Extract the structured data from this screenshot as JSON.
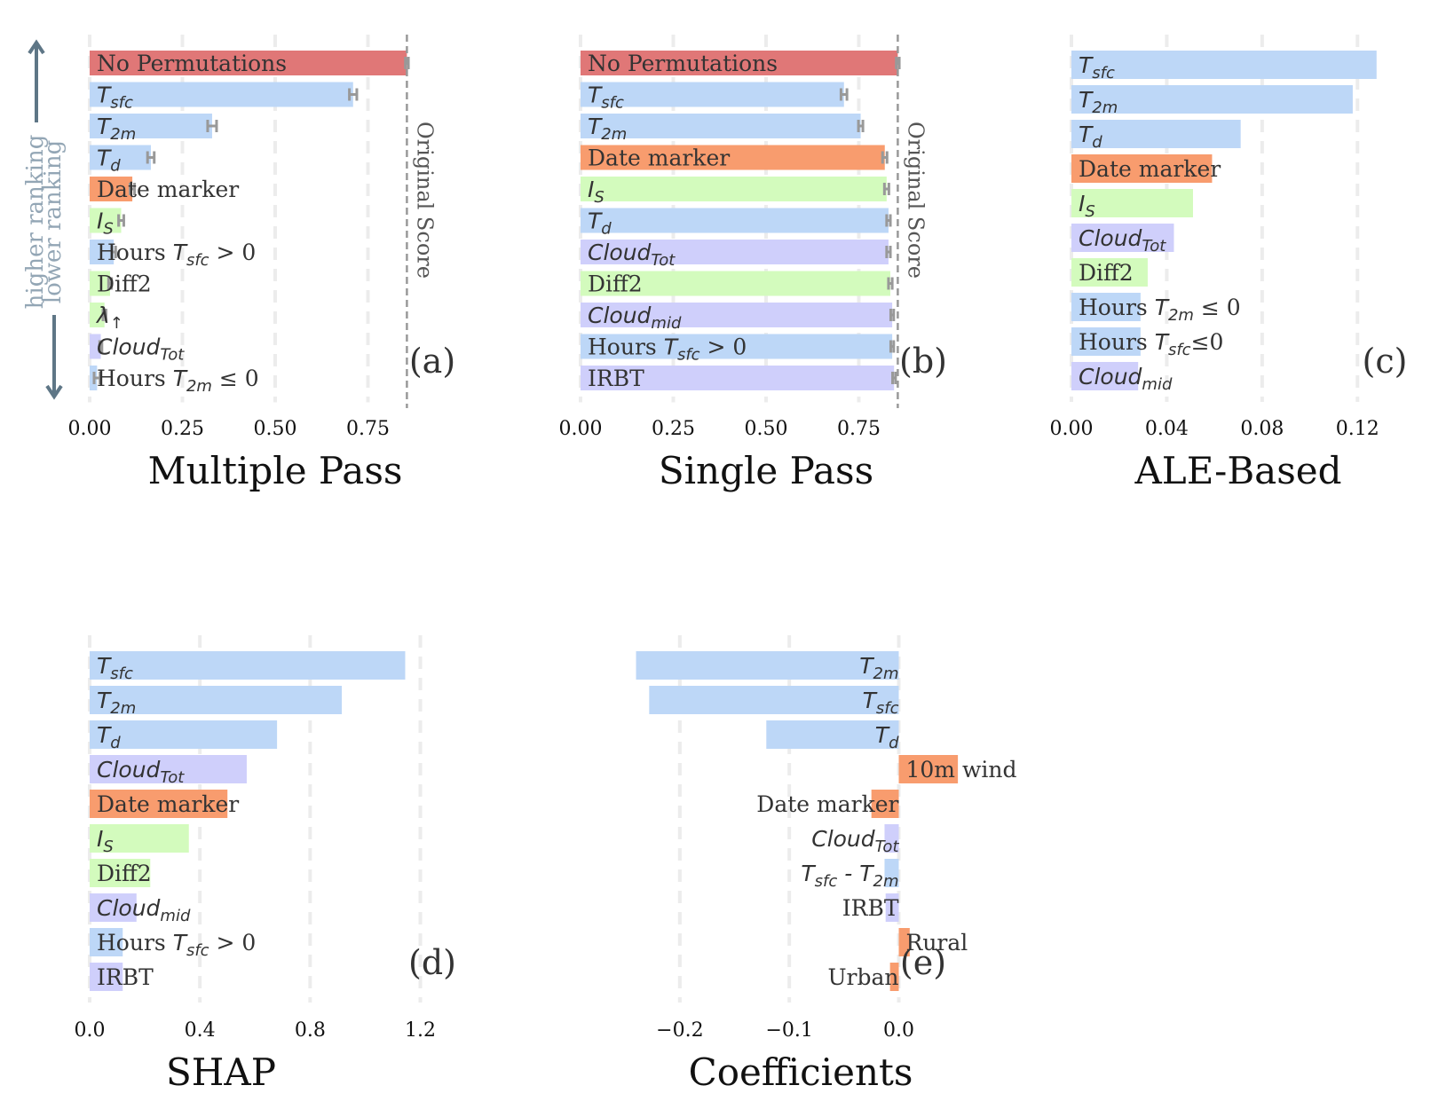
{
  "figure": {
    "ranking_annotation": {
      "higher": "higher ranking",
      "lower": "lower ranking"
    },
    "original_score_label": "Original Score"
  },
  "colors": {
    "baseline": "#e07777",
    "temperature": "#bdd7f7",
    "time": "#f89c6e",
    "radiation": "#d3fbbd",
    "cloud": "#cfcffb",
    "arrow": "#5e7686",
    "error_bar": "#999999"
  },
  "chart_data": [
    {
      "id": "a",
      "type": "bar",
      "orientation": "horizontal",
      "title": "Multiple Pass",
      "panel_label": "(a)",
      "xlim": [
        0,
        1.0
      ],
      "xticks": [
        "0.00",
        "0.25",
        "0.50",
        "0.75"
      ],
      "xtick_values": [
        0,
        0.25,
        0.5,
        0.75
      ],
      "original_score": 0.855,
      "categories": [
        {
          "text": "No Permutations",
          "value": 0.855,
          "err": 0.004,
          "group": "baseline"
        },
        {
          "base": "T",
          "sub": "sfc",
          "value": 0.71,
          "err": 0.01,
          "group": "temperature"
        },
        {
          "base": "T",
          "sub": "2m",
          "value": 0.33,
          "err": 0.012,
          "group": "temperature"
        },
        {
          "base": "T",
          "sub": "d",
          "value": 0.165,
          "err": 0.009,
          "group": "temperature"
        },
        {
          "text": "Date marker",
          "value": 0.115,
          "err": 0.006,
          "group": "time"
        },
        {
          "base": "I",
          "sub": "S",
          "value": 0.085,
          "err": 0.007,
          "group": "radiation"
        },
        {
          "text": "Hours ",
          "base": "T",
          "sub": "sfc",
          "suffix": " > 0",
          "value": 0.065,
          "err": 0.005,
          "group": "temperature"
        },
        {
          "text": "Diff2",
          "value": 0.055,
          "err": 0.004,
          "group": "radiation"
        },
        {
          "base": "λ",
          "sub": "↑",
          "value": 0.04,
          "err": 0.004,
          "group": "radiation"
        },
        {
          "base": "Cloud",
          "sub": "Tot",
          "value": 0.03,
          "err": 0.003,
          "group": "cloud"
        },
        {
          "text": "Hours ",
          "base": "T",
          "sub": "2m",
          "suffix": " ≤ 0",
          "value": 0.02,
          "err": 0.008,
          "group": "temperature"
        }
      ]
    },
    {
      "id": "b",
      "type": "bar",
      "orientation": "horizontal",
      "title": "Single Pass",
      "panel_label": "(b)",
      "xlim": [
        0,
        1.0
      ],
      "xticks": [
        "0.00",
        "0.25",
        "0.50",
        "0.75"
      ],
      "xtick_values": [
        0,
        0.25,
        0.5,
        0.75
      ],
      "original_score": 0.855,
      "categories": [
        {
          "text": "No Permutations",
          "value": 0.855,
          "err": 0.004,
          "group": "baseline"
        },
        {
          "base": "T",
          "sub": "sfc",
          "value": 0.71,
          "err": 0.008,
          "group": "temperature"
        },
        {
          "base": "T",
          "sub": "2m",
          "value": 0.755,
          "err": 0.006,
          "group": "temperature"
        },
        {
          "text": "Date marker",
          "value": 0.82,
          "err": 0.006,
          "group": "time"
        },
        {
          "base": "I",
          "sub": "S",
          "value": 0.825,
          "err": 0.006,
          "group": "radiation"
        },
        {
          "base": "T",
          "sub": "d",
          "value": 0.83,
          "err": 0.005,
          "group": "temperature"
        },
        {
          "base": "Cloud",
          "sub": "Tot",
          "value": 0.83,
          "err": 0.005,
          "group": "cloud"
        },
        {
          "text": "Diff2",
          "value": 0.835,
          "err": 0.005,
          "group": "radiation"
        },
        {
          "base": "Cloud",
          "sub": "mid",
          "value": 0.84,
          "err": 0.004,
          "group": "cloud"
        },
        {
          "text": "Hours ",
          "base": "T",
          "sub": "sfc",
          "suffix": " > 0",
          "value": 0.84,
          "err": 0.004,
          "group": "temperature"
        },
        {
          "text": "IRBT",
          "value": 0.845,
          "err": 0.004,
          "group": "cloud"
        }
      ]
    },
    {
      "id": "c",
      "type": "bar",
      "orientation": "horizontal",
      "title": "ALE-Based",
      "panel_label": "(c)",
      "xlim": [
        0,
        0.14
      ],
      "xticks": [
        "0.00",
        "0.04",
        "0.08",
        "0.12"
      ],
      "xtick_values": [
        0,
        0.04,
        0.08,
        0.12
      ],
      "categories": [
        {
          "base": "T",
          "sub": "sfc",
          "value": 0.128,
          "group": "temperature"
        },
        {
          "base": "T",
          "sub": "2m",
          "value": 0.118,
          "group": "temperature"
        },
        {
          "base": "T",
          "sub": "d",
          "value": 0.071,
          "group": "temperature"
        },
        {
          "text": "Date marker",
          "value": 0.059,
          "group": "time"
        },
        {
          "base": "I",
          "sub": "S",
          "value": 0.051,
          "group": "radiation"
        },
        {
          "base": "Cloud",
          "sub": "Tot",
          "value": 0.043,
          "group": "cloud"
        },
        {
          "text": "Diff2",
          "value": 0.032,
          "group": "radiation"
        },
        {
          "text": "Hours ",
          "base": "T",
          "sub": "2m",
          "suffix": " ≤ 0",
          "value": 0.029,
          "group": "temperature"
        },
        {
          "text": "Hours ",
          "base": "T",
          "sub": "sfc",
          "suffix": "≤0",
          "value": 0.029,
          "group": "temperature"
        },
        {
          "base": "Cloud",
          "sub": "mid",
          "value": 0.028,
          "group": "cloud"
        }
      ]
    },
    {
      "id": "d",
      "type": "bar",
      "orientation": "horizontal",
      "title": "SHAP",
      "panel_label": "(d)",
      "xlim": [
        0,
        1.34
      ],
      "xticks": [
        "0.0",
        "0.4",
        "0.8",
        "1.2"
      ],
      "xtick_values": [
        0,
        0.4,
        0.8,
        1.2
      ],
      "categories": [
        {
          "base": "T",
          "sub": "sfc",
          "value": 1.145,
          "group": "temperature"
        },
        {
          "base": "T",
          "sub": "2m",
          "value": 0.915,
          "group": "temperature"
        },
        {
          "base": "T",
          "sub": "d",
          "value": 0.68,
          "group": "temperature"
        },
        {
          "base": "Cloud",
          "sub": "Tot",
          "value": 0.57,
          "group": "cloud"
        },
        {
          "text": "Date marker",
          "value": 0.5,
          "group": "time"
        },
        {
          "base": "I",
          "sub": "S",
          "value": 0.36,
          "group": "radiation"
        },
        {
          "text": "Diff2",
          "value": 0.22,
          "group": "radiation"
        },
        {
          "base": "Cloud",
          "sub": "mid",
          "value": 0.17,
          "group": "cloud"
        },
        {
          "text": "Hours ",
          "base": "T",
          "sub": "sfc",
          "suffix": " > 0",
          "value": 0.12,
          "group": "temperature"
        },
        {
          "text": "IRBT",
          "value": 0.12,
          "group": "cloud"
        }
      ]
    },
    {
      "id": "e",
      "type": "bar",
      "orientation": "horizontal",
      "title": "Coefficients",
      "panel_label": "(e)",
      "xlim": [
        -0.268,
        0.105
      ],
      "xticks": [
        "−0.2",
        "−0.1",
        "0.0"
      ],
      "xtick_values": [
        -0.2,
        -0.1,
        0.0
      ],
      "categories": [
        {
          "base": "T",
          "sub": "2m",
          "value": -0.24,
          "group": "temperature"
        },
        {
          "base": "T",
          "sub": "sfc",
          "value": -0.228,
          "group": "temperature"
        },
        {
          "base": "T",
          "sub": "d",
          "value": -0.121,
          "group": "temperature"
        },
        {
          "text": "10m wind",
          "value": 0.054,
          "group": "time"
        },
        {
          "text": "Date marker",
          "value": -0.025,
          "group": "time"
        },
        {
          "base": "Cloud",
          "sub": "Tot",
          "value": -0.013,
          "group": "cloud"
        },
        {
          "base": "T",
          "sub": "sfc",
          "mid": " - ",
          "base2": "T",
          "sub2": "2m",
          "value": -0.013,
          "group": "temperature"
        },
        {
          "text": "IRBT",
          "value": -0.012,
          "group": "cloud"
        },
        {
          "text": "Rural",
          "value": 0.01,
          "group": "time"
        },
        {
          "text": "Urban",
          "value": -0.008,
          "group": "time"
        }
      ]
    }
  ]
}
